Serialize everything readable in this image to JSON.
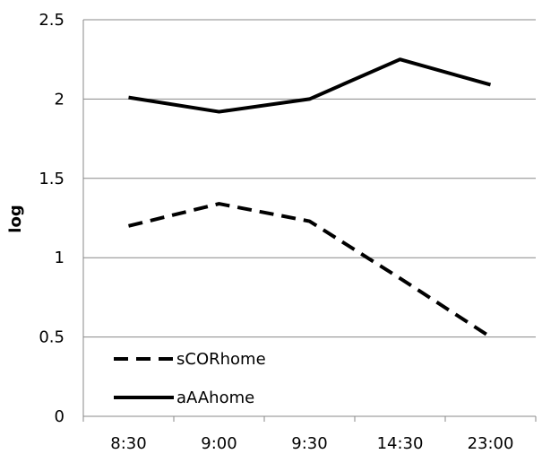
{
  "chart_data": {
    "type": "line",
    "title": "",
    "xlabel": "",
    "ylabel": "log",
    "categories": [
      "8:30",
      "9:00",
      "9:30",
      "14:30",
      "23:00"
    ],
    "ylim": [
      0,
      2.5
    ],
    "yticks": [
      "0",
      "0.5",
      "1",
      "1.5",
      "2",
      "2.5"
    ],
    "grid": true,
    "legend_position": "bottom-left",
    "series": [
      {
        "name": "sCORhome",
        "values": [
          1.2,
          1.34,
          1.23,
          0.87,
          0.5
        ],
        "line_style": "dashed",
        "color": "#000000"
      },
      {
        "name": "aAAhome",
        "values": [
          2.01,
          1.92,
          2.0,
          2.25,
          2.09
        ],
        "line_style": "solid",
        "color": "#000000"
      }
    ],
    "colors": {
      "grid": "#888888",
      "axis": "#888888",
      "text": "#000000"
    }
  }
}
